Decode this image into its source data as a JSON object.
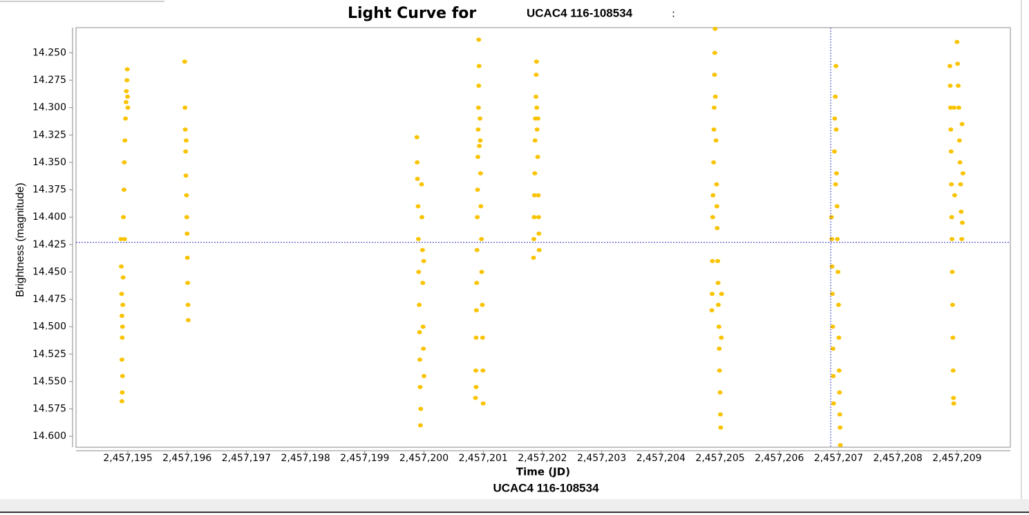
{
  "chart_data": {
    "type": "scatter",
    "title": "Light Curve for",
    "title_star": "UCAC4 116-108534",
    "title_suffix": ":",
    "xlabel": "Time (JD)",
    "ylabel": "Brightness (magnitude)",
    "xlim": [
      2457194.125,
      2457209.9
    ],
    "ylim": [
      14.227,
      14.61
    ],
    "y_inverted": true,
    "xticks": [
      {
        "value": 2457195,
        "label": "2,457,195"
      },
      {
        "value": 2457196,
        "label": "2,457,196"
      },
      {
        "value": 2457197,
        "label": "2,457,197"
      },
      {
        "value": 2457198,
        "label": "2,457,198"
      },
      {
        "value": 2457199,
        "label": "2,457,199"
      },
      {
        "value": 2457200,
        "label": "2,457,200"
      },
      {
        "value": 2457201,
        "label": "2,457,201"
      },
      {
        "value": 2457202,
        "label": "2,457,202"
      },
      {
        "value": 2457203,
        "label": "2,457,203"
      },
      {
        "value": 2457204,
        "label": "2,457,204"
      },
      {
        "value": 2457205,
        "label": "2,457,205"
      },
      {
        "value": 2457206,
        "label": "2,457,206"
      },
      {
        "value": 2457207,
        "label": "2,457,207"
      },
      {
        "value": 2457208,
        "label": "2,457,208"
      },
      {
        "value": 2457209,
        "label": "2,457,209"
      }
    ],
    "yticks": [
      {
        "value": 14.25,
        "label": "14.250"
      },
      {
        "value": 14.275,
        "label": "14.275"
      },
      {
        "value": 14.3,
        "label": "14.300"
      },
      {
        "value": 14.325,
        "label": "14.325"
      },
      {
        "value": 14.35,
        "label": "14.350"
      },
      {
        "value": 14.375,
        "label": "14.375"
      },
      {
        "value": 14.4,
        "label": "14.400"
      },
      {
        "value": 14.425,
        "label": "14.425"
      },
      {
        "value": 14.45,
        "label": "14.450"
      },
      {
        "value": 14.475,
        "label": "14.475"
      },
      {
        "value": 14.5,
        "label": "14.500"
      },
      {
        "value": 14.525,
        "label": "14.525"
      },
      {
        "value": 14.55,
        "label": "14.550"
      },
      {
        "value": 14.575,
        "label": "14.575"
      },
      {
        "value": 14.6,
        "label": "14.600"
      }
    ],
    "crosshair": {
      "x": 2457206.867,
      "y": 14.423,
      "color": "#3333cc"
    },
    "x": [
      2457194.883,
      2457194.89,
      2457194.895,
      2457194.9,
      2457194.905,
      2457194.9,
      2457194.91,
      2457194.905,
      2457194.9,
      2457194.91,
      2457194.915,
      2457194.92,
      2457194.925,
      2457194.935,
      2457194.94,
      2457194.95,
      2457194.96,
      2457194.97,
      2457194.975,
      2457194.985,
      2457194.99,
      2457195.0,
      2457194.995,
      2457194.945,
      2457195.96,
      2457195.965,
      2457195.97,
      2457195.975,
      2457195.98,
      2457195.99,
      2457195.995,
      2457196.0,
      2457196.005,
      2457196.01,
      2457196.015,
      2457196.02,
      2457195.985,
      2457199.88,
      2457199.885,
      2457199.89,
      2457199.9,
      2457199.905,
      2457199.91,
      2457199.92,
      2457199.925,
      2457199.93,
      2457199.935,
      2457199.945,
      2457199.94,
      2457199.96,
      2457199.965,
      2457199.975,
      2457199.98,
      2457199.985,
      2457199.99,
      2457200.0,
      2457199.995,
      2457200.87,
      2457200.875,
      2457200.88,
      2457200.885,
      2457200.89,
      2457200.895,
      2457200.9,
      2457200.905,
      2457200.91,
      2457200.915,
      2457200.92,
      2457200.925,
      2457200.93,
      2457200.925,
      2457200.935,
      2457200.945,
      2457200.955,
      2457200.96,
      2457200.97,
      2457200.975,
      2457200.985,
      2457200.99,
      2457200.995,
      2457201.0,
      2457200.95,
      2457200.88,
      2457201.85,
      2457201.855,
      2457201.86,
      2457201.865,
      2457201.87,
      2457201.875,
      2457201.88,
      2457201.89,
      2457201.895,
      2457201.9,
      2457201.905,
      2457201.91,
      2457201.92,
      2457201.93,
      2457201.935,
      2457201.94,
      2457201.945,
      2457201.925,
      2457204.86,
      2457204.865,
      2457204.87,
      2457204.875,
      2457204.88,
      2457204.89,
      2457204.895,
      2457204.9,
      2457204.905,
      2457204.91,
      2457204.915,
      2457204.92,
      2457204.93,
      2457204.94,
      2457204.945,
      2457204.95,
      2457204.96,
      2457204.965,
      2457204.97,
      2457204.98,
      2457204.985,
      2457204.99,
      2457205.0,
      2457205.005,
      2457205.01,
      2457205.02,
      2457205.025,
      2457206.88,
      2457206.885,
      2457206.89,
      2457206.895,
      2457206.9,
      2457206.905,
      2457206.91,
      2457206.915,
      2457206.93,
      2457206.935,
      2457206.945,
      2457206.955,
      2457206.96,
      2457206.965,
      2457206.975,
      2457206.98,
      2457206.99,
      2457207.0,
      2457207.005,
      2457207.01,
      2457207.015,
      2457207.02,
      2457207.025,
      2457207.03,
      2457206.95,
      2457208.88,
      2457208.885,
      2457208.89,
      2457208.895,
      2457208.9,
      2457208.905,
      2457208.91,
      2457208.915,
      2457208.92,
      2457208.925,
      2457208.93,
      2457208.935,
      2457208.94,
      2457208.945,
      2457208.95,
      2457208.96,
      2457209.0,
      2457209.01,
      2457209.02,
      2457209.03,
      2457209.04,
      2457209.05,
      2457209.06,
      2457209.07,
      2457209.08,
      2457209.09,
      2457209.1,
      2457209.085
    ],
    "series": [
      {
        "name": "UCAC4 116-108534",
        "color": "#f9c300",
        "values": [
          14.42,
          14.445,
          14.47,
          14.49,
          14.51,
          14.53,
          14.545,
          14.56,
          14.568,
          14.5,
          14.48,
          14.455,
          14.4,
          14.375,
          14.35,
          14.33,
          14.31,
          14.295,
          14.285,
          14.275,
          14.265,
          14.3,
          14.29,
          14.42,
          14.258,
          14.3,
          14.32,
          14.34,
          14.362,
          14.38,
          14.4,
          14.415,
          14.437,
          14.46,
          14.48,
          14.494,
          14.33,
          14.327,
          14.35,
          14.365,
          14.39,
          14.42,
          14.45,
          14.48,
          14.505,
          14.53,
          14.555,
          14.575,
          14.59,
          14.37,
          14.4,
          14.43,
          14.46,
          14.5,
          14.52,
          14.545,
          14.44,
          14.565,
          14.54,
          14.51,
          14.485,
          14.46,
          14.43,
          14.4,
          14.375,
          14.345,
          14.32,
          14.3,
          14.28,
          14.262,
          14.238,
          14.335,
          14.31,
          14.36,
          14.39,
          14.42,
          14.45,
          14.48,
          14.51,
          14.54,
          14.57,
          14.33,
          14.555,
          14.437,
          14.42,
          14.4,
          14.38,
          14.36,
          14.33,
          14.31,
          14.29,
          14.27,
          14.258,
          14.3,
          14.32,
          14.345,
          14.38,
          14.4,
          14.415,
          14.43,
          14.31,
          14.485,
          14.47,
          14.44,
          14.4,
          14.38,
          14.35,
          14.32,
          14.3,
          14.27,
          14.25,
          14.228,
          14.29,
          14.33,
          14.37,
          14.39,
          14.41,
          14.44,
          14.46,
          14.48,
          14.5,
          14.52,
          14.54,
          14.56,
          14.58,
          14.592,
          14.51,
          14.47,
          14.4,
          14.42,
          14.445,
          14.47,
          14.5,
          14.52,
          14.545,
          14.57,
          14.34,
          14.31,
          14.29,
          14.262,
          14.32,
          14.36,
          14.39,
          14.42,
          14.45,
          14.48,
          14.51,
          14.54,
          14.56,
          14.58,
          14.592,
          14.608,
          14.37,
          14.262,
          14.28,
          14.3,
          14.32,
          14.34,
          14.37,
          14.4,
          14.42,
          14.45,
          14.48,
          14.51,
          14.54,
          14.565,
          14.57,
          14.3,
          14.38,
          14.24,
          14.26,
          14.28,
          14.3,
          14.33,
          14.35,
          14.37,
          14.395,
          14.42,
          14.405,
          14.36,
          14.315
        ]
      }
    ]
  }
}
